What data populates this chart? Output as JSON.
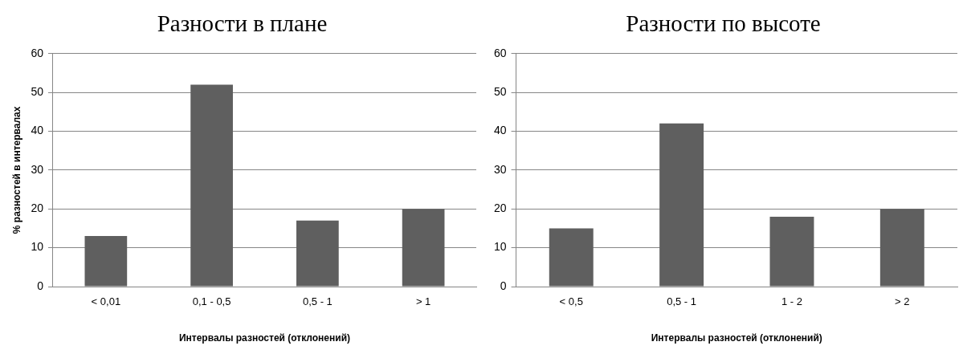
{
  "chart_data": [
    {
      "type": "bar",
      "title": "Разности в плане",
      "xlabel": "Интервалы разностей (отклонений)",
      "ylabel": "% разностей в интервалах",
      "categories": [
        "< 0,01",
        "0,1 - 0,5",
        "0,5 - 1",
        "> 1"
      ],
      "values": [
        13,
        52,
        17,
        20
      ],
      "color": "#5f5f5f",
      "ylim": [
        0,
        60
      ],
      "yticks": [
        0,
        10,
        20,
        30,
        40,
        50,
        60
      ],
      "grid": "y"
    },
    {
      "type": "bar",
      "title": "Разности по высоте",
      "xlabel": "Интервалы разностей (отклонений)",
      "categories": [
        "< 0,5",
        "0,5 - 1",
        "1 - 2",
        "> 2"
      ],
      "values": [
        15,
        42,
        18,
        20
      ],
      "color": "#5f5f5f",
      "ylim": [
        0,
        60
      ],
      "yticks": [
        0,
        10,
        20,
        30,
        40,
        50,
        60
      ],
      "grid": "y"
    }
  ]
}
